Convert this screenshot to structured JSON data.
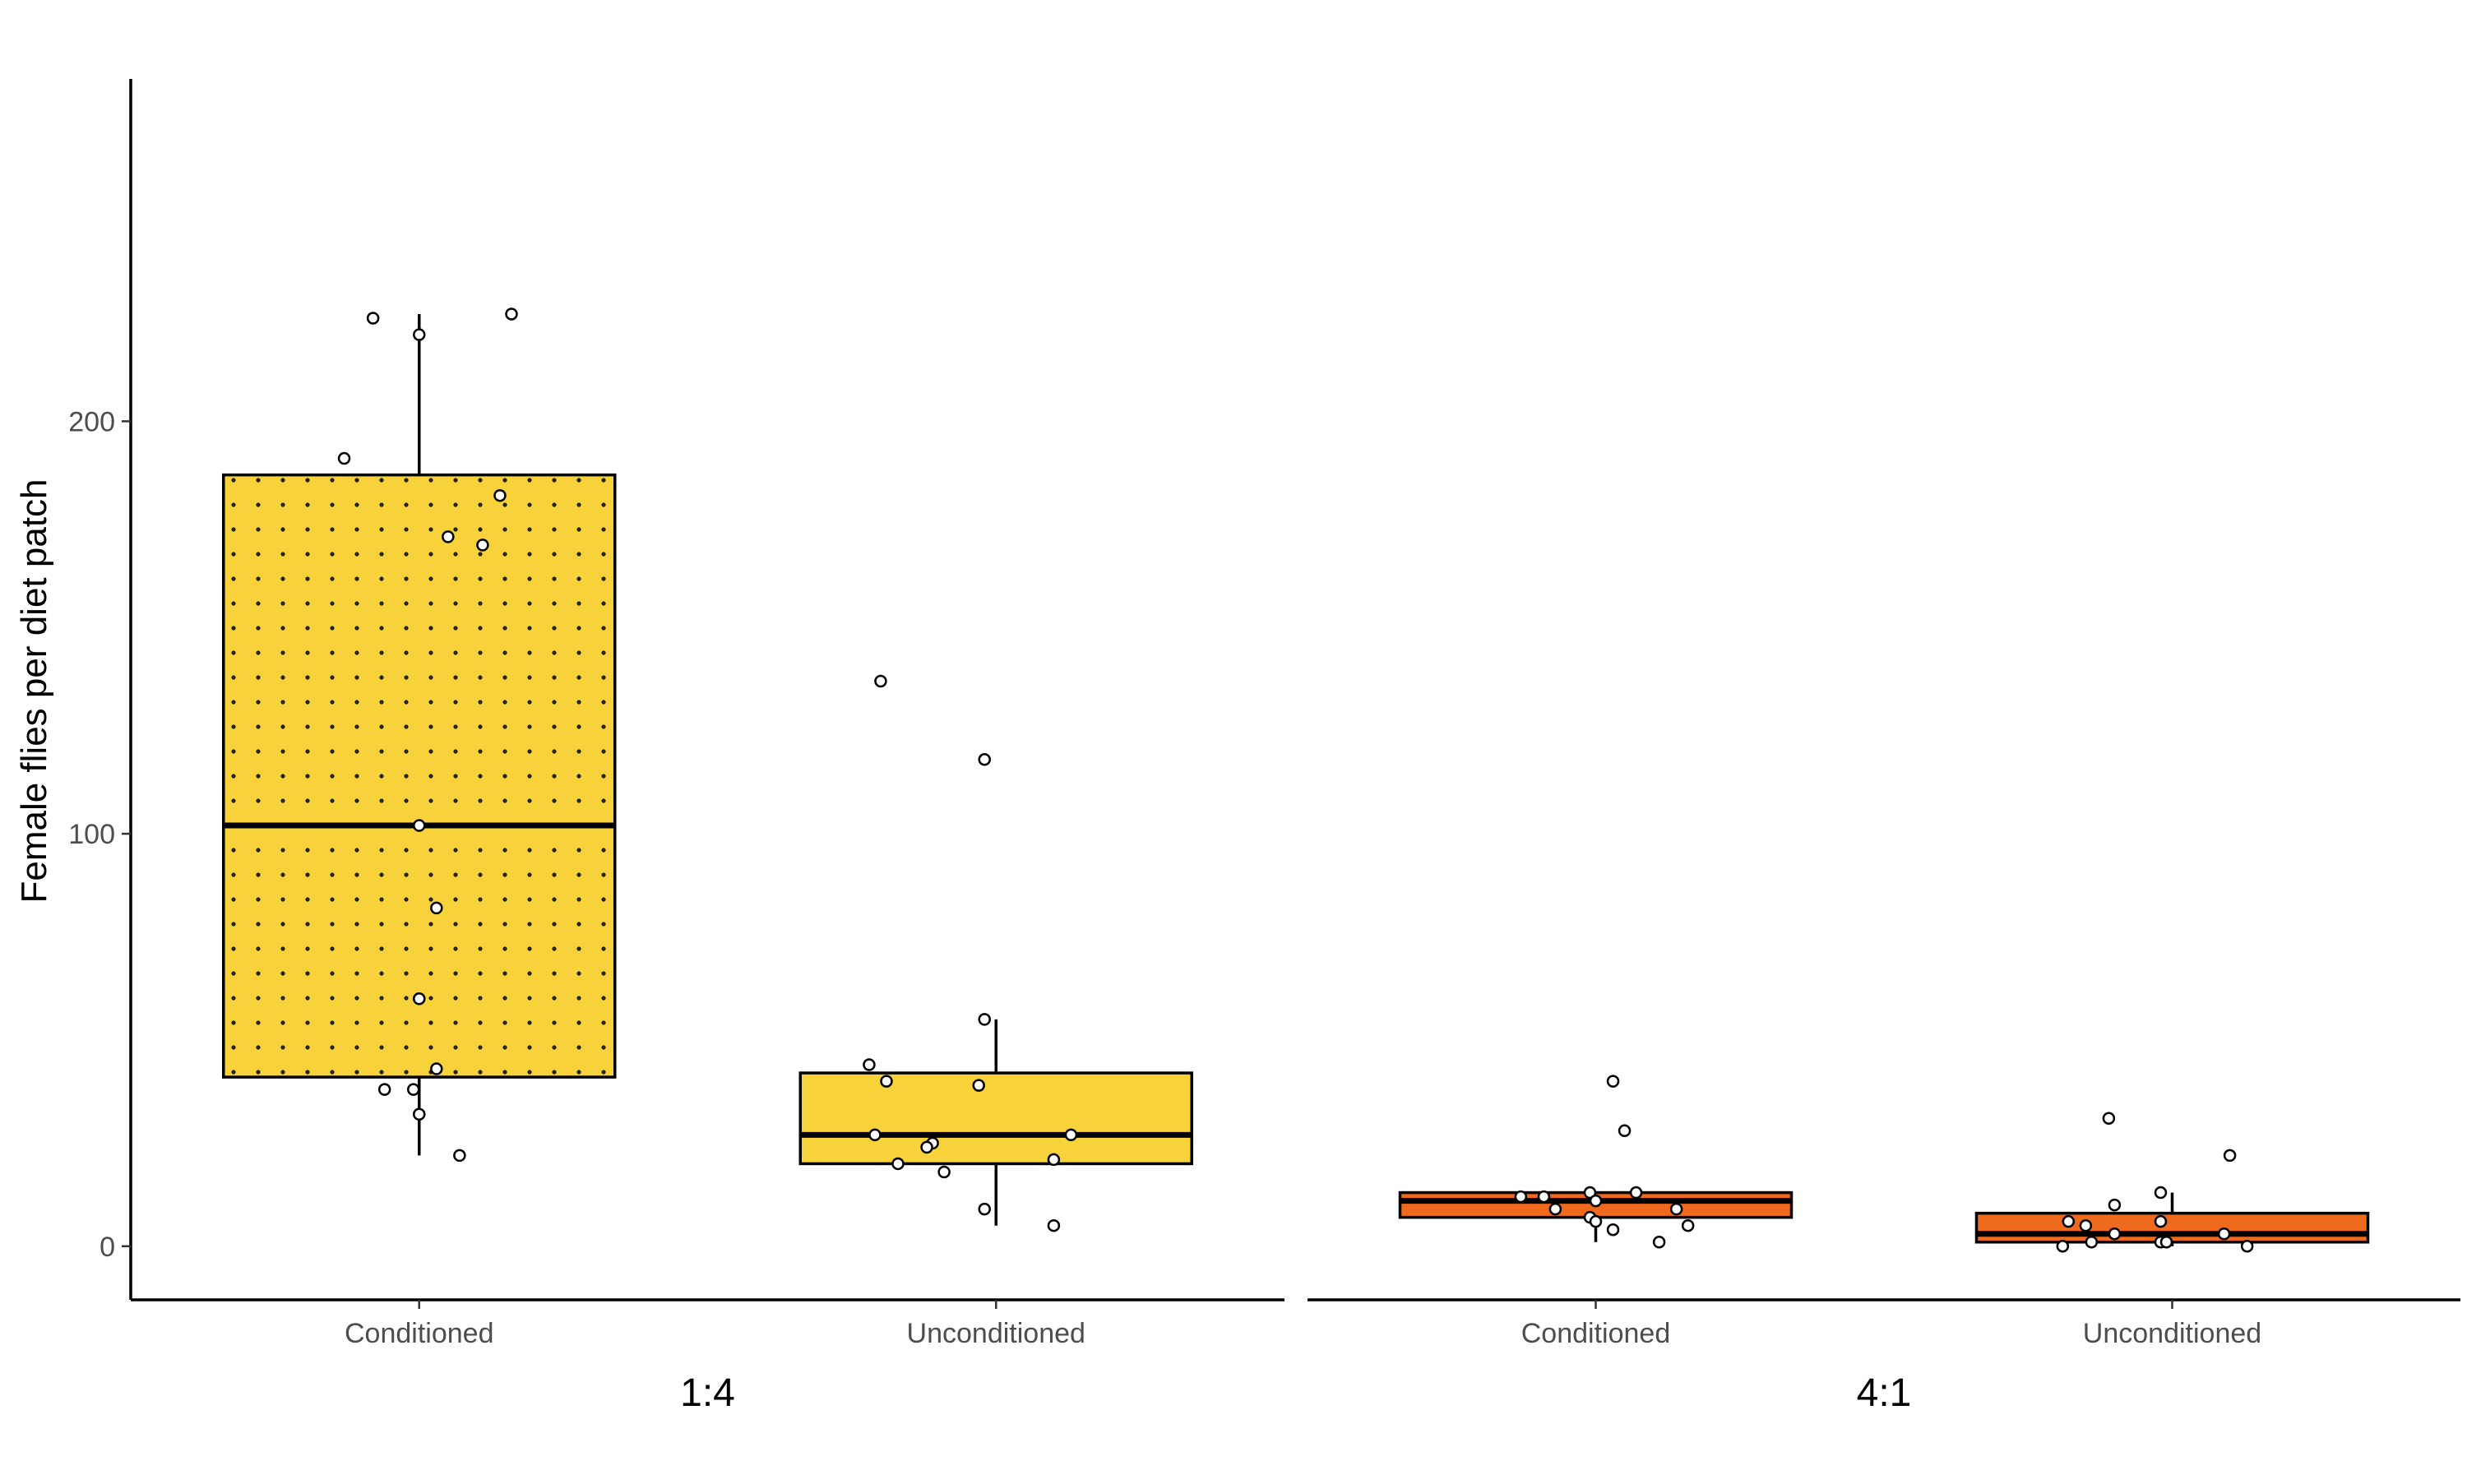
{
  "chart_data": {
    "type": "boxplot",
    "ylabel": "Female flies per diet patch",
    "xlabel": "",
    "ylim": [
      -13,
      283
    ],
    "yticks": [
      0,
      100,
      200
    ],
    "grid": false,
    "legend": "none",
    "panels": [
      {
        "label": "1:4",
        "fill": "#F8D23A",
        "groups": [
          {
            "category": "Conditioned",
            "pattern": "dots",
            "q1": 41,
            "median": 102,
            "q3": 187,
            "whisker_low": 22,
            "whisker_high": 226,
            "points": [
              [
                -0.08,
                225
              ],
              [
                0.0,
                221
              ],
              [
                0.16,
                226
              ],
              [
                -0.13,
                191
              ],
              [
                0.14,
                182
              ],
              [
                0.05,
                172
              ],
              [
                0.11,
                170
              ],
              [
                0.0,
                102
              ],
              [
                0.03,
                82
              ],
              [
                0.0,
                60
              ],
              [
                0.03,
                43
              ],
              [
                -0.06,
                38
              ],
              [
                -0.01,
                38
              ],
              [
                0.0,
                32
              ],
              [
                0.07,
                22
              ]
            ]
          },
          {
            "category": "Unconditioned",
            "pattern": "none",
            "q1": 20,
            "median": 27,
            "q3": 42,
            "whisker_low": 5,
            "whisker_high": 55,
            "points": [
              [
                -0.2,
                137
              ],
              [
                -0.02,
                118
              ],
              [
                -0.02,
                55
              ],
              [
                -0.22,
                44
              ],
              [
                -0.19,
                40
              ],
              [
                -0.03,
                39
              ],
              [
                -0.21,
                27
              ],
              [
                0.13,
                27
              ],
              [
                -0.11,
                25
              ],
              [
                -0.12,
                24
              ],
              [
                0.1,
                21
              ],
              [
                -0.17,
                20
              ],
              [
                -0.09,
                18
              ],
              [
                -0.02,
                9
              ],
              [
                0.1,
                5
              ]
            ]
          }
        ]
      },
      {
        "label": "4:1",
        "fill": "#F06A1E",
        "groups": [
          {
            "category": "Conditioned",
            "pattern": "none",
            "q1": 7,
            "median": 11,
            "q3": 13,
            "whisker_low": 1,
            "whisker_high": 13,
            "points": [
              [
                0.03,
                40
              ],
              [
                0.05,
                28
              ],
              [
                -0.13,
                12
              ],
              [
                -0.09,
                12
              ],
              [
                -0.01,
                13
              ],
              [
                0.07,
                13
              ],
              [
                0.0,
                11
              ],
              [
                -0.07,
                9
              ],
              [
                0.14,
                9
              ],
              [
                -0.01,
                7
              ],
              [
                0.0,
                6
              ],
              [
                0.03,
                4
              ],
              [
                0.16,
                5
              ],
              [
                0.11,
                1
              ]
            ]
          },
          {
            "category": "Unconditioned",
            "pattern": "none",
            "q1": 1,
            "median": 3,
            "q3": 8,
            "whisker_low": 0,
            "whisker_high": 13,
            "points": [
              [
                -0.11,
                31
              ],
              [
                0.1,
                22
              ],
              [
                -0.1,
                10
              ],
              [
                -0.02,
                13
              ],
              [
                -0.18,
                6
              ],
              [
                -0.15,
                5
              ],
              [
                -0.02,
                6
              ],
              [
                0.09,
                3
              ],
              [
                -0.1,
                3
              ],
              [
                -0.14,
                1
              ],
              [
                -0.19,
                0
              ],
              [
                -0.02,
                1
              ],
              [
                -0.01,
                1
              ],
              [
                0.13,
                0
              ]
            ]
          }
        ]
      }
    ]
  }
}
